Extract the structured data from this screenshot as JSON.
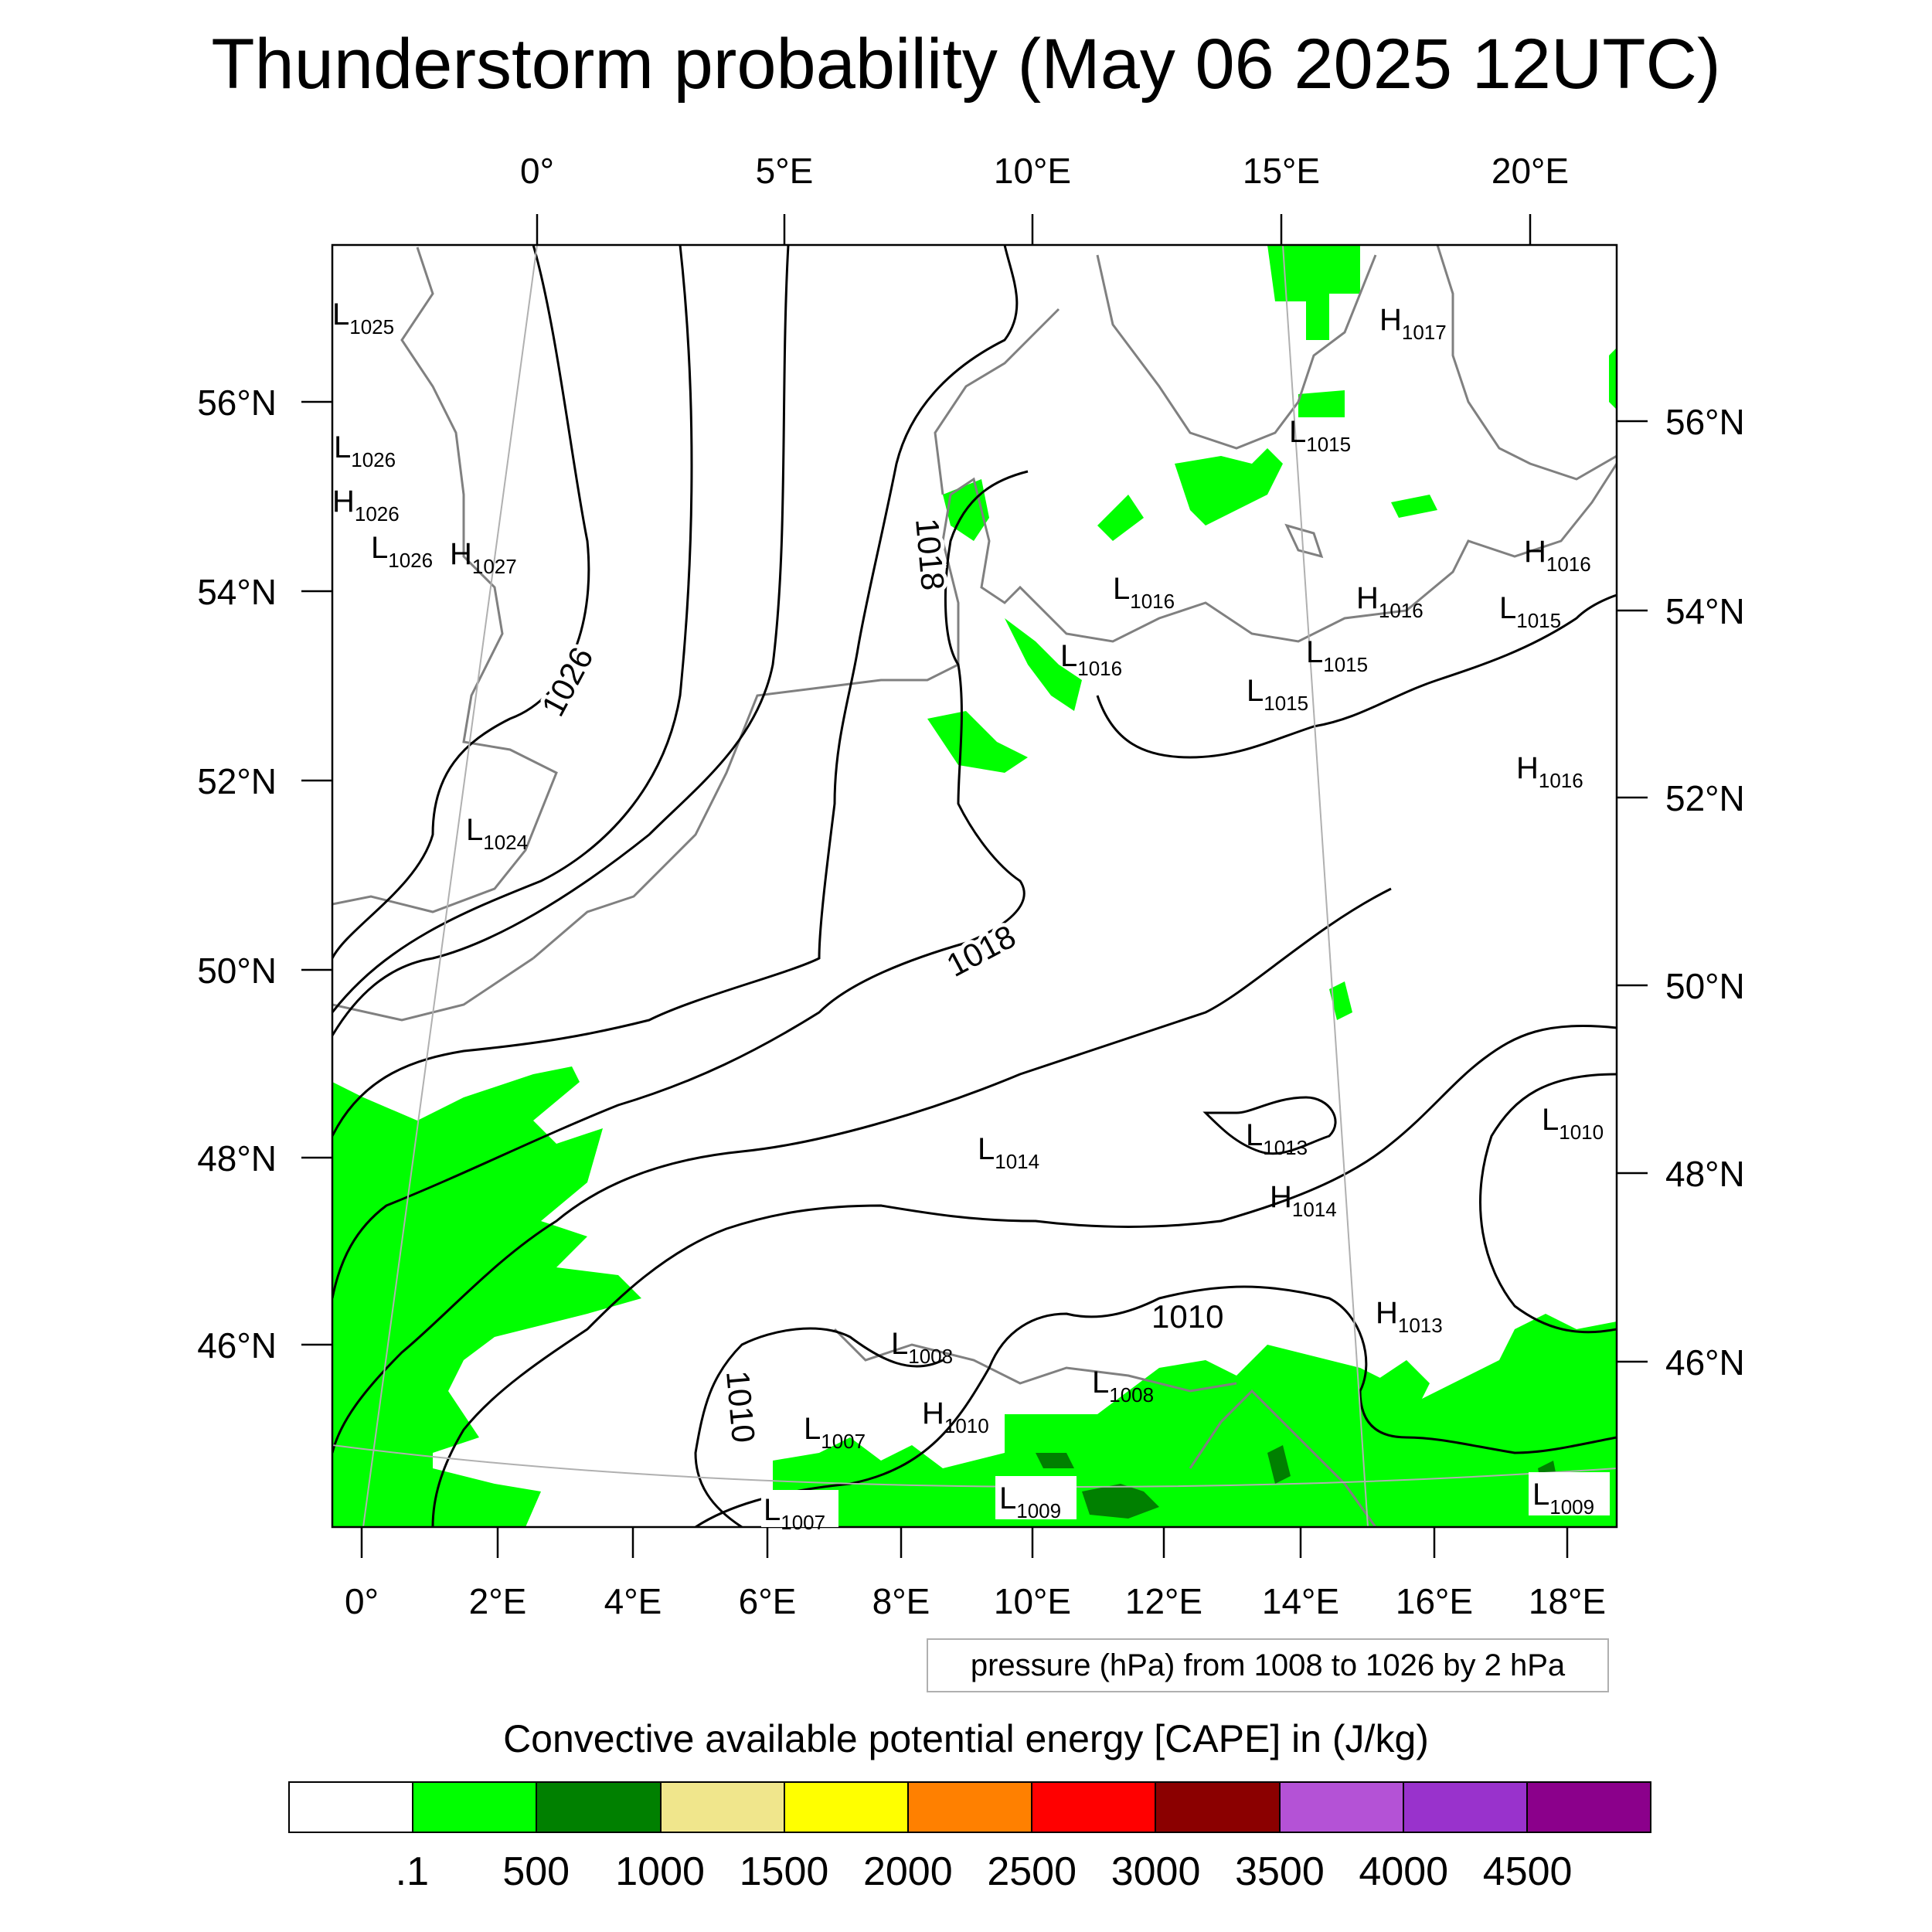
{
  "title": "Thunderstorm probability (May 06 2025 12UTC)",
  "top_ticks": [
    "0°",
    "5°E",
    "10°E",
    "15°E",
    "20°E"
  ],
  "bottom_ticks": [
    "0°",
    "2°E",
    "4°E",
    "6°E",
    "8°E",
    "10°E",
    "12°E",
    "14°E",
    "16°E",
    "18°E"
  ],
  "left_ticks": [
    "56°N",
    "54°N",
    "52°N",
    "50°N",
    "48°N",
    "46°N"
  ],
  "right_ticks": [
    "56°N",
    "54°N",
    "52°N",
    "50°N",
    "48°N",
    "46°N"
  ],
  "isobar_labels": [
    "1026",
    "1018",
    "1018",
    "1010",
    "1010"
  ],
  "pressure_centers": [
    {
      "t": "L",
      "v": "1025"
    },
    {
      "t": "L",
      "v": "1026"
    },
    {
      "t": "H",
      "v": "1026"
    },
    {
      "t": "L",
      "v": "1026"
    },
    {
      "t": "H",
      "v": "1027"
    },
    {
      "t": "L",
      "v": "1024"
    },
    {
      "t": "H",
      "v": "1017"
    },
    {
      "t": "L",
      "v": "1015"
    },
    {
      "t": "H",
      "v": "1016"
    },
    {
      "t": "L",
      "v": "1016"
    },
    {
      "t": "H",
      "v": "1016"
    },
    {
      "t": "L",
      "v": "1015"
    },
    {
      "t": "L",
      "v": "1016"
    },
    {
      "t": "L",
      "v": "1015"
    },
    {
      "t": "L",
      "v": "1015"
    },
    {
      "t": "H",
      "v": "1016"
    },
    {
      "t": "L",
      "v": "1010"
    },
    {
      "t": "L",
      "v": "1014"
    },
    {
      "t": "L",
      "v": "1013"
    },
    {
      "t": "H",
      "v": "1014"
    },
    {
      "t": "H",
      "v": "1013"
    },
    {
      "t": "L",
      "v": "1008"
    },
    {
      "t": "L",
      "v": "1008"
    },
    {
      "t": "H",
      "v": "1010"
    },
    {
      "t": "L",
      "v": "1007"
    },
    {
      "t": "L",
      "v": "1009"
    },
    {
      "t": "L",
      "v": "1007"
    },
    {
      "t": "L",
      "v": "1009"
    }
  ],
  "note": "pressure (hPa) from 1008 to 1026 by 2 hPa",
  "colorbar": {
    "title": "Convective available potential energy [CAPE] in (J/kg)",
    "colors": [
      "#ffffff",
      "#00ff00",
      "#008000",
      "#f0e68c",
      "#ffff00",
      "#ff8000",
      "#ff0000",
      "#8b0000",
      "#b452d6",
      "#9932cc",
      "#8b008b"
    ],
    "labels": [
      ".1",
      "500",
      "1000",
      "1500",
      "2000",
      "2500",
      "3000",
      "3500",
      "4000",
      "4500"
    ]
  },
  "cape_colors": {
    "light": "#00ff00",
    "dark": "#008000",
    "coast": "#808080",
    "isobar": "#000000"
  }
}
